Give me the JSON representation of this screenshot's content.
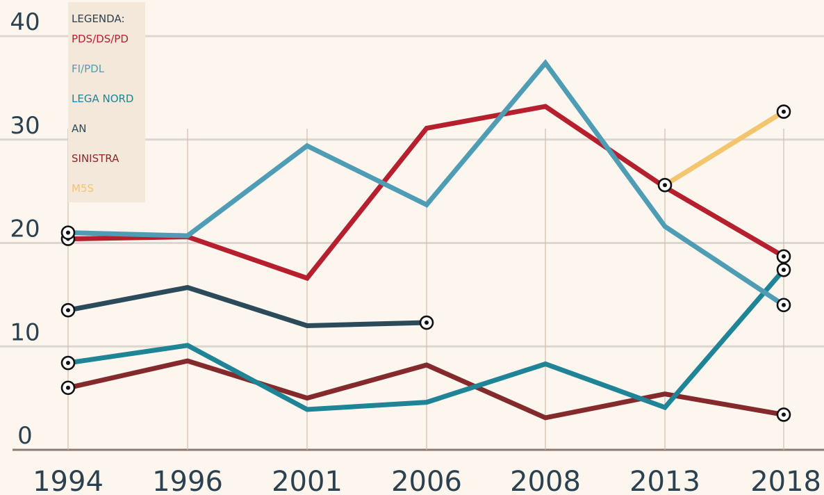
{
  "chart_data": {
    "type": "line",
    "title": "",
    "xlabel": "",
    "ylabel": "",
    "ylim": [
      0,
      40
    ],
    "y_ticks": [
      0,
      10,
      20,
      30,
      40
    ],
    "categories": [
      "1994",
      "1996",
      "2001",
      "2006",
      "2008",
      "2013",
      "2018"
    ],
    "grid": "horizontal",
    "legend": {
      "title": "LEGENDA:",
      "placement": "top-left"
    },
    "series": [
      {
        "name": "PDS/DS/PD",
        "color": "#b51f2e",
        "values": [
          20.4,
          20.6,
          16.6,
          31.1,
          33.2,
          25.4,
          18.7
        ]
      },
      {
        "name": "FI/PDL",
        "color": "#4f9db4",
        "values": [
          21.0,
          20.7,
          29.4,
          23.7,
          37.4,
          21.6,
          14.0
        ]
      },
      {
        "name": "LEGA NORD",
        "color": "#1f8496",
        "values": [
          8.4,
          10.1,
          3.9,
          4.6,
          8.3,
          4.1,
          17.4
        ]
      },
      {
        "name": "AN",
        "color": "#2b4b5b",
        "values": [
          13.5,
          15.7,
          12.0,
          12.3,
          null,
          null,
          null
        ]
      },
      {
        "name": "SINISTRA",
        "color": "#842a2c",
        "values": [
          6.0,
          8.6,
          5.0,
          8.2,
          3.1,
          5.4,
          3.4
        ]
      },
      {
        "name": "M5S",
        "color": "#f3c56e",
        "values": [
          null,
          null,
          null,
          null,
          null,
          25.6,
          32.7
        ]
      }
    ]
  }
}
